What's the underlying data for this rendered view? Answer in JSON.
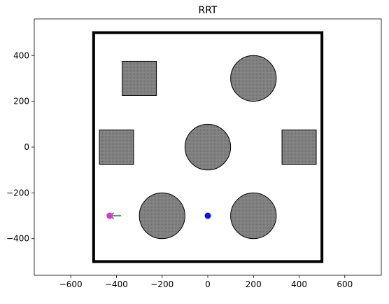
{
  "chart_data": {
    "type": "scatter",
    "title": "RRT",
    "xlabel": "",
    "ylabel": "",
    "xlim": [
      -760,
      760
    ],
    "ylim": [
      -560,
      560
    ],
    "xticks": [
      -600,
      -400,
      -200,
      0,
      200,
      400,
      600
    ],
    "yticks": [
      -400,
      -200,
      0,
      200,
      400
    ],
    "xtick_labels": [
      "−600",
      "−400",
      "−200",
      "0",
      "200",
      "400",
      "600"
    ],
    "ytick_labels": [
      "−400",
      "−200",
      "0",
      "200",
      "400"
    ],
    "grid": false,
    "boundary": {
      "xmin": -500,
      "xmax": 500,
      "ymin": -500,
      "ymax": 500
    },
    "obstacles": [
      {
        "shape": "square",
        "cx": -300,
        "cy": 300,
        "size": 150
      },
      {
        "shape": "circle",
        "cx": 200,
        "cy": 300,
        "r": 100
      },
      {
        "shape": "square",
        "cx": -400,
        "cy": 0,
        "size": 150
      },
      {
        "shape": "circle",
        "cx": 0,
        "cy": 0,
        "r": 100
      },
      {
        "shape": "square",
        "cx": 400,
        "cy": 0,
        "size": 150
      },
      {
        "shape": "circle",
        "cx": -200,
        "cy": -300,
        "r": 100
      },
      {
        "shape": "circle",
        "cx": 200,
        "cy": -300,
        "r": 100
      }
    ],
    "start": {
      "x": -430,
      "y": -300
    },
    "goal": {
      "x": 0,
      "y": -300
    },
    "tree_edges": [
      {
        "from": [
          -430,
          -300
        ],
        "to": [
          -380,
          -300
        ]
      }
    ],
    "colors": {
      "obstacle_fill": "#808080",
      "obstacle_stroke": "#000000",
      "boundary": "#000000",
      "start": "#dd33dd",
      "goal": "#1010ee",
      "tree": "#1a8a1a"
    }
  }
}
